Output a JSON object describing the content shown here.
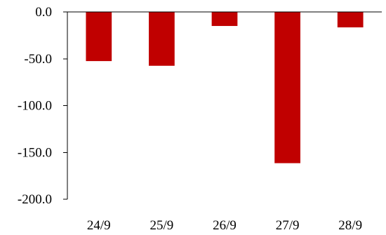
{
  "chart_data": {
    "type": "bar",
    "title": "",
    "xlabel": "",
    "ylabel": "",
    "categories": [
      "24/9",
      "25/9",
      "26/9",
      "27/9",
      "28/9"
    ],
    "values": [
      -52.5,
      -57.5,
      -15.0,
      -161.5,
      -16.5
    ],
    "ylim": [
      -200,
      0
    ],
    "yticks": [
      0,
      -50,
      -100,
      -150,
      -200
    ],
    "ytick_labels": [
      "0.0",
      "-50.0",
      "-100.0",
      "-150.0",
      "-200.0"
    ],
    "grid": false,
    "legend": "none",
    "bar_color": "#C00000"
  }
}
